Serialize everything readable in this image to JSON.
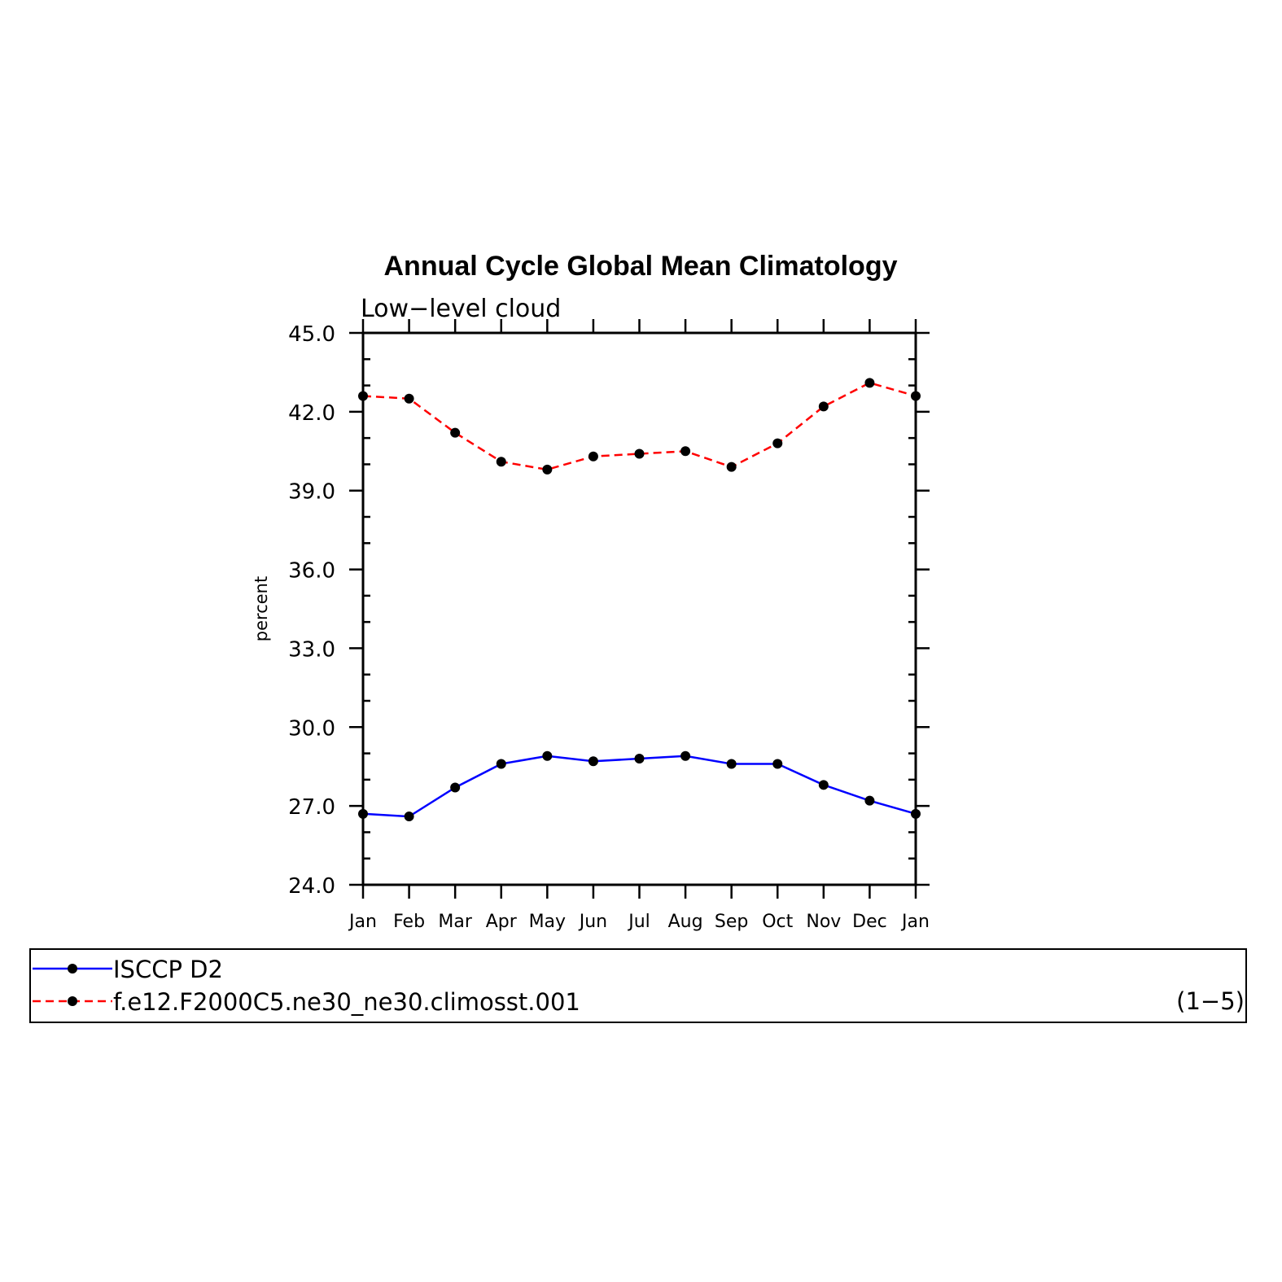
{
  "chart_data": {
    "type": "line",
    "title": "Annual Cycle Global Mean Climatology",
    "subtitle": "Low−level cloud",
    "ylabel": "percent",
    "xlabel": "",
    "ylim": [
      24.0,
      45.0
    ],
    "yticks": [
      "24.0",
      "27.0",
      "30.0",
      "33.0",
      "36.0",
      "39.0",
      "42.0",
      "45.0"
    ],
    "categories": [
      "Jan",
      "Feb",
      "Mar",
      "Apr",
      "May",
      "Jun",
      "Jul",
      "Aug",
      "Sep",
      "Oct",
      "Nov",
      "Dec",
      "Jan"
    ],
    "grid": false,
    "legend_position": "bottom",
    "series": [
      {
        "name": "ISCCP D2",
        "color": "#0000ff",
        "dash": "solid",
        "marker": "filled-circle",
        "values": [
          26.7,
          26.6,
          27.7,
          28.6,
          28.9,
          28.7,
          28.8,
          28.9,
          28.6,
          28.6,
          27.8,
          27.2,
          26.7
        ]
      },
      {
        "name": "f.e12.F2000C5.ne30_ne30.climosst.001",
        "color": "#ff0000",
        "dash": "dashed",
        "marker": "filled-circle",
        "values": [
          42.6,
          42.5,
          41.2,
          40.1,
          39.8,
          40.3,
          40.4,
          40.5,
          39.9,
          40.8,
          42.2,
          43.1,
          42.6
        ]
      }
    ]
  },
  "legend": {
    "note": "(1−5)"
  }
}
